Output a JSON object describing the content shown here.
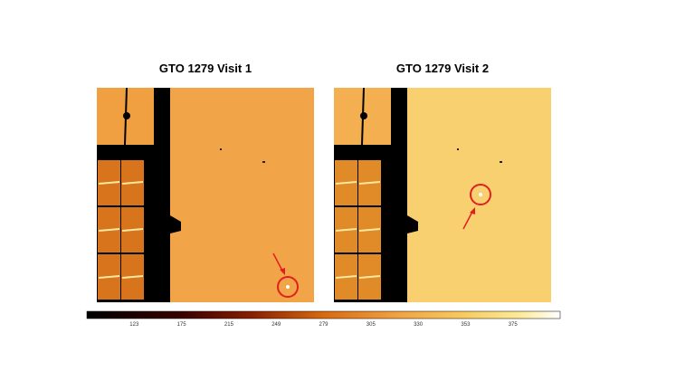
{
  "panels": [
    {
      "title": "GTO 1279 Visit 1"
    },
    {
      "title": "GTO 1279 Visit 2"
    }
  ],
  "colorbar": {
    "tick_labels": [
      "123",
      "175",
      "215",
      "249",
      "279",
      "305",
      "330",
      "353",
      "375"
    ]
  }
}
